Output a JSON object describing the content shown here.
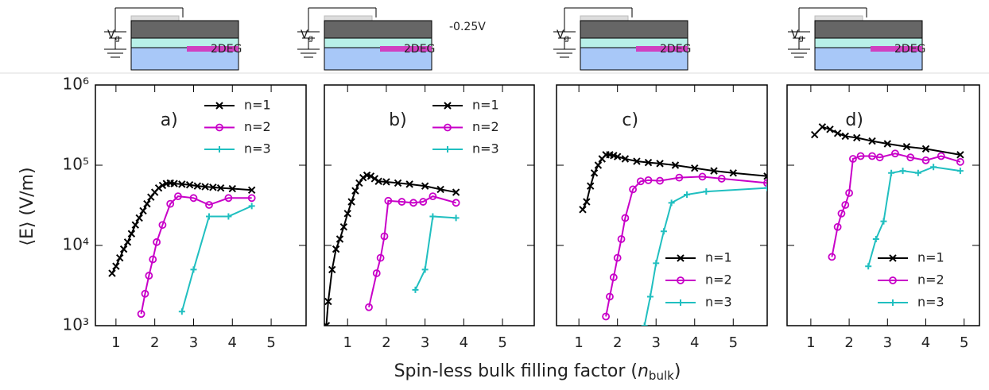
{
  "figure": {
    "xlabel": [
      "Spin-less bulk filling factor (",
      "n",
      "bulk",
      ")"
    ],
    "ylabel": "⟨E⟩ (V/m)"
  },
  "schematics": [
    {
      "gate": "V",
      "gate_sub": "g",
      "layer": "2DEG"
    },
    {
      "gate": "V",
      "gate_sub": "g",
      "layer": "2DEG",
      "bias": "-0.25V"
    },
    {
      "gate": "V",
      "gate_sub": "g",
      "layer": "2DEG"
    },
    {
      "gate": "V",
      "gate_sub": "g",
      "layer": "2DEG"
    }
  ],
  "chart_data": [
    {
      "type": "line",
      "label": "a)",
      "xlim": [
        0.47,
        5.9
      ],
      "xticks": [
        1,
        2,
        3,
        4,
        5
      ],
      "ylim": [
        1000,
        1000000
      ],
      "log_y": true,
      "show_ytick_labels": true,
      "yticks": [
        {
          "value": 1000,
          "label": "10³"
        },
        {
          "value": 10000,
          "label": "10⁴"
        },
        {
          "value": 100000,
          "label": "10⁵"
        },
        {
          "value": 1000000,
          "label": "10⁶"
        }
      ],
      "legend": "upper right",
      "series": [
        {
          "name": "n=1",
          "color": "#000000",
          "marker": "x",
          "x": [
            0.9,
            1.0,
            1.1,
            1.2,
            1.3,
            1.4,
            1.5,
            1.6,
            1.7,
            1.8,
            1.9,
            2.0,
            2.1,
            2.2,
            2.3,
            2.4,
            2.5,
            2.7,
            2.9,
            3.1,
            3.3,
            3.5,
            3.7,
            4.0,
            4.5
          ],
          "values": [
            4500,
            5500,
            7000,
            9000,
            11000,
            14000,
            18000,
            22000,
            27000,
            33000,
            40000,
            46000,
            52000,
            56000,
            59000,
            60000,
            59000,
            58000,
            57000,
            55000,
            54000,
            53000,
            52000,
            51000,
            49000
          ]
        },
        {
          "name": "n=2",
          "color": "#c800c8",
          "marker": "o",
          "x": [
            1.65,
            1.75,
            1.85,
            1.95,
            2.05,
            2.2,
            2.4,
            2.6,
            3.0,
            3.4,
            3.9,
            4.5
          ],
          "values": [
            1400,
            2500,
            4200,
            6700,
            11000,
            18000,
            33000,
            41000,
            39000,
            32000,
            39000,
            39000
          ]
        },
        {
          "name": "n=3",
          "color": "#20bfc0",
          "marker": "+",
          "x": [
            2.7,
            3.0,
            3.4,
            3.9,
            4.5
          ],
          "values": [
            1500,
            5000,
            23000,
            23000,
            31000
          ]
        }
      ]
    },
    {
      "type": "line",
      "label": "b)",
      "xlim": [
        0.4,
        5.82
      ],
      "xticks": [
        1,
        2,
        3,
        4,
        5
      ],
      "ylim": [
        1000,
        1000000
      ],
      "log_y": true,
      "show_ytick_labels": false,
      "yticks": [
        1000,
        10000,
        100000,
        1000000
      ],
      "legend": "upper right",
      "series": [
        {
          "name": "n=1",
          "color": "#000000",
          "marker": "x",
          "x": [
            0.45,
            0.5,
            0.6,
            0.7,
            0.8,
            0.9,
            1.0,
            1.1,
            1.2,
            1.3,
            1.4,
            1.5,
            1.6,
            1.7,
            1.8,
            2.0,
            2.3,
            2.6,
            3.0,
            3.4,
            3.8
          ],
          "values": [
            1000,
            2000,
            5000,
            9000,
            12000,
            17000,
            25000,
            35000,
            48000,
            60000,
            70000,
            75000,
            73000,
            68000,
            63000,
            62000,
            60000,
            58000,
            55000,
            50000,
            46000
          ]
        },
        {
          "name": "n=2",
          "color": "#c800c8",
          "marker": "o",
          "x": [
            1.55,
            1.75,
            1.85,
            1.95,
            2.05,
            2.4,
            2.7,
            2.95,
            3.2,
            3.8
          ],
          "values": [
            1700,
            4500,
            7000,
            13000,
            36000,
            35000,
            34000,
            35000,
            41000,
            34000
          ]
        },
        {
          "name": "n=3",
          "color": "#20bfc0",
          "marker": "+",
          "x": [
            2.75,
            3.0,
            3.2,
            3.8
          ],
          "values": [
            2800,
            5000,
            23000,
            22000
          ]
        }
      ]
    },
    {
      "type": "line",
      "label": "c)",
      "xlim": [
        0.42,
        5.88
      ],
      "xticks": [
        1,
        2,
        3,
        4,
        5
      ],
      "ylim": [
        1000,
        1000000
      ],
      "log_y": true,
      "show_ytick_labels": false,
      "yticks": [
        1000,
        10000,
        100000,
        1000000
      ],
      "legend": "lower right",
      "series": [
        {
          "name": "n=1",
          "color": "#000000",
          "marker": "x",
          "x": [
            1.1,
            1.2,
            1.3,
            1.4,
            1.5,
            1.6,
            1.7,
            1.8,
            1.9,
            2.0,
            2.2,
            2.5,
            2.8,
            3.1,
            3.5,
            4.0,
            4.5,
            5.0,
            5.88
          ],
          "values": [
            28000,
            35000,
            55000,
            80000,
            100000,
            120000,
            135000,
            135000,
            132000,
            128000,
            120000,
            112000,
            108000,
            105000,
            100000,
            92000,
            85000,
            80000,
            73000
          ]
        },
        {
          "name": "n=2",
          "color": "#c800c8",
          "marker": "o",
          "x": [
            1.7,
            1.8,
            1.9,
            2.0,
            2.1,
            2.2,
            2.4,
            2.6,
            2.8,
            3.1,
            3.6,
            4.2,
            4.7,
            5.88
          ],
          "values": [
            1300,
            2300,
            4000,
            7000,
            12000,
            22000,
            50000,
            63000,
            65000,
            64000,
            70000,
            72000,
            68000,
            60000
          ]
        },
        {
          "name": "n=3",
          "color": "#20bfc0",
          "marker": "+",
          "x": [
            2.7,
            2.85,
            3.0,
            3.2,
            3.4,
            3.8,
            4.3,
            5.88
          ],
          "values": [
            1000,
            2300,
            6000,
            15000,
            34000,
            43000,
            47000,
            52000
          ]
        }
      ]
    },
    {
      "type": "line",
      "label": "d)",
      "xlim": [
        0.38,
        5.4
      ],
      "xticks": [
        1,
        2,
        3,
        4,
        5
      ],
      "ylim": [
        1000,
        1000000
      ],
      "log_y": true,
      "show_ytick_labels": false,
      "yticks": [
        1000,
        10000,
        100000,
        1000000
      ],
      "legend": "lower right",
      "series": [
        {
          "name": "n=1",
          "color": "#000000",
          "marker": "x",
          "x": [
            1.1,
            1.3,
            1.5,
            1.7,
            1.9,
            2.2,
            2.6,
            3.0,
            3.5,
            4.0,
            4.9
          ],
          "values": [
            240000,
            300000,
            280000,
            250000,
            230000,
            220000,
            200000,
            185000,
            170000,
            160000,
            135000
          ]
        },
        {
          "name": "n=2",
          "color": "#c800c8",
          "marker": "o",
          "x": [
            1.55,
            1.7,
            1.8,
            1.9,
            2.0,
            2.1,
            2.3,
            2.6,
            2.8,
            3.2,
            3.6,
            4.0,
            4.4,
            4.9
          ],
          "values": [
            7200,
            17000,
            25000,
            32000,
            45000,
            120000,
            130000,
            130000,
            125000,
            140000,
            125000,
            115000,
            130000,
            110000
          ]
        },
        {
          "name": "n=3",
          "color": "#20bfc0",
          "marker": "+",
          "x": [
            2.5,
            2.7,
            2.9,
            3.1,
            3.4,
            3.8,
            4.2,
            4.9
          ],
          "values": [
            5500,
            12000,
            20000,
            80000,
            85000,
            80000,
            95000,
            85000
          ]
        }
      ]
    }
  ]
}
